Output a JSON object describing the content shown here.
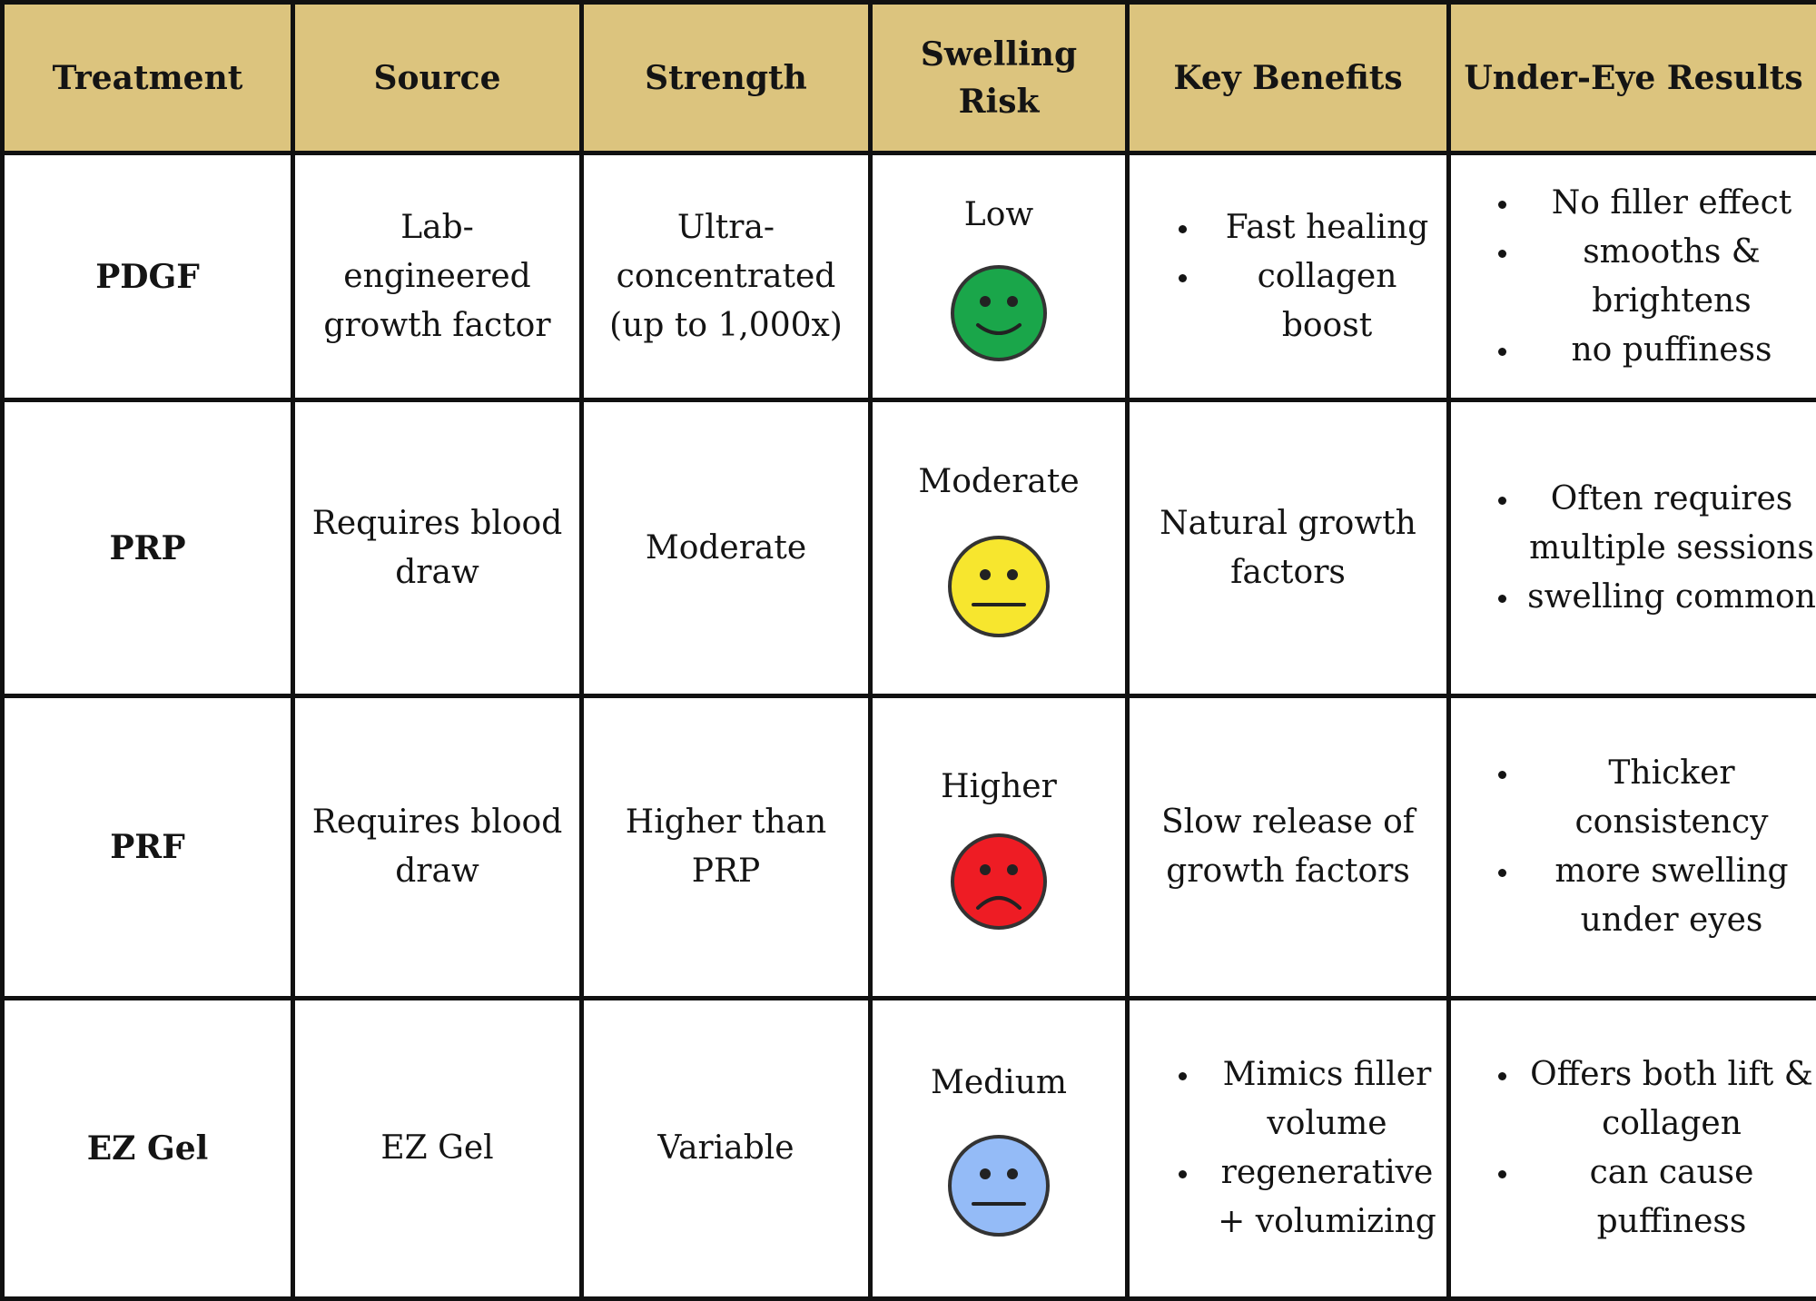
{
  "headers": [
    "Treatment",
    "Source",
    "Strength",
    "Swelling Risk",
    "Key Benefits",
    "Under-Eye Results"
  ],
  "rows": [
    {
      "treatment": "PDGF",
      "source": "Lab-engineered growth factor",
      "strength": "Ultra-concentrated (up to 1,000x)",
      "swelling_risk": "Low",
      "risk_icon": "happy-face-icon",
      "risk_color": "#1aa64a",
      "key_benefits": [
        "Fast healing",
        "collagen boost"
      ],
      "under_eye_results": [
        "No filler effect",
        "smooths & brightens",
        "no puffiness"
      ]
    },
    {
      "treatment": "PRP",
      "source": "Requires blood draw",
      "strength": "Moderate",
      "swelling_risk": "Moderate",
      "risk_icon": "neutral-face-icon",
      "risk_color": "#f7e62e",
      "key_benefits_text": "Natural growth factors",
      "under_eye_results": [
        "Often requires multiple sessions",
        " swelling common"
      ]
    },
    {
      "treatment": "PRF",
      "source": "Requires blood draw",
      "strength": "Higher than PRP",
      "swelling_risk": "Higher",
      "risk_icon": "sad-face-icon",
      "risk_color": "#ee1c24",
      "key_benefits_text": "Slow release of growth factors",
      "under_eye_results": [
        "Thicker consistency",
        "more swelling under eyes"
      ]
    },
    {
      "treatment": "EZ Gel",
      "source": "EZ Gel",
      "strength": "Variable",
      "swelling_risk": "Medium",
      "risk_icon": "neutral-face-icon",
      "risk_color": "#94bbf7",
      "key_benefits": [
        "Mimics filler volume",
        "regenerative + volumizing"
      ],
      "under_eye_results": [
        "Offers both lift & collagen",
        "can cause puffiness"
      ]
    }
  ]
}
